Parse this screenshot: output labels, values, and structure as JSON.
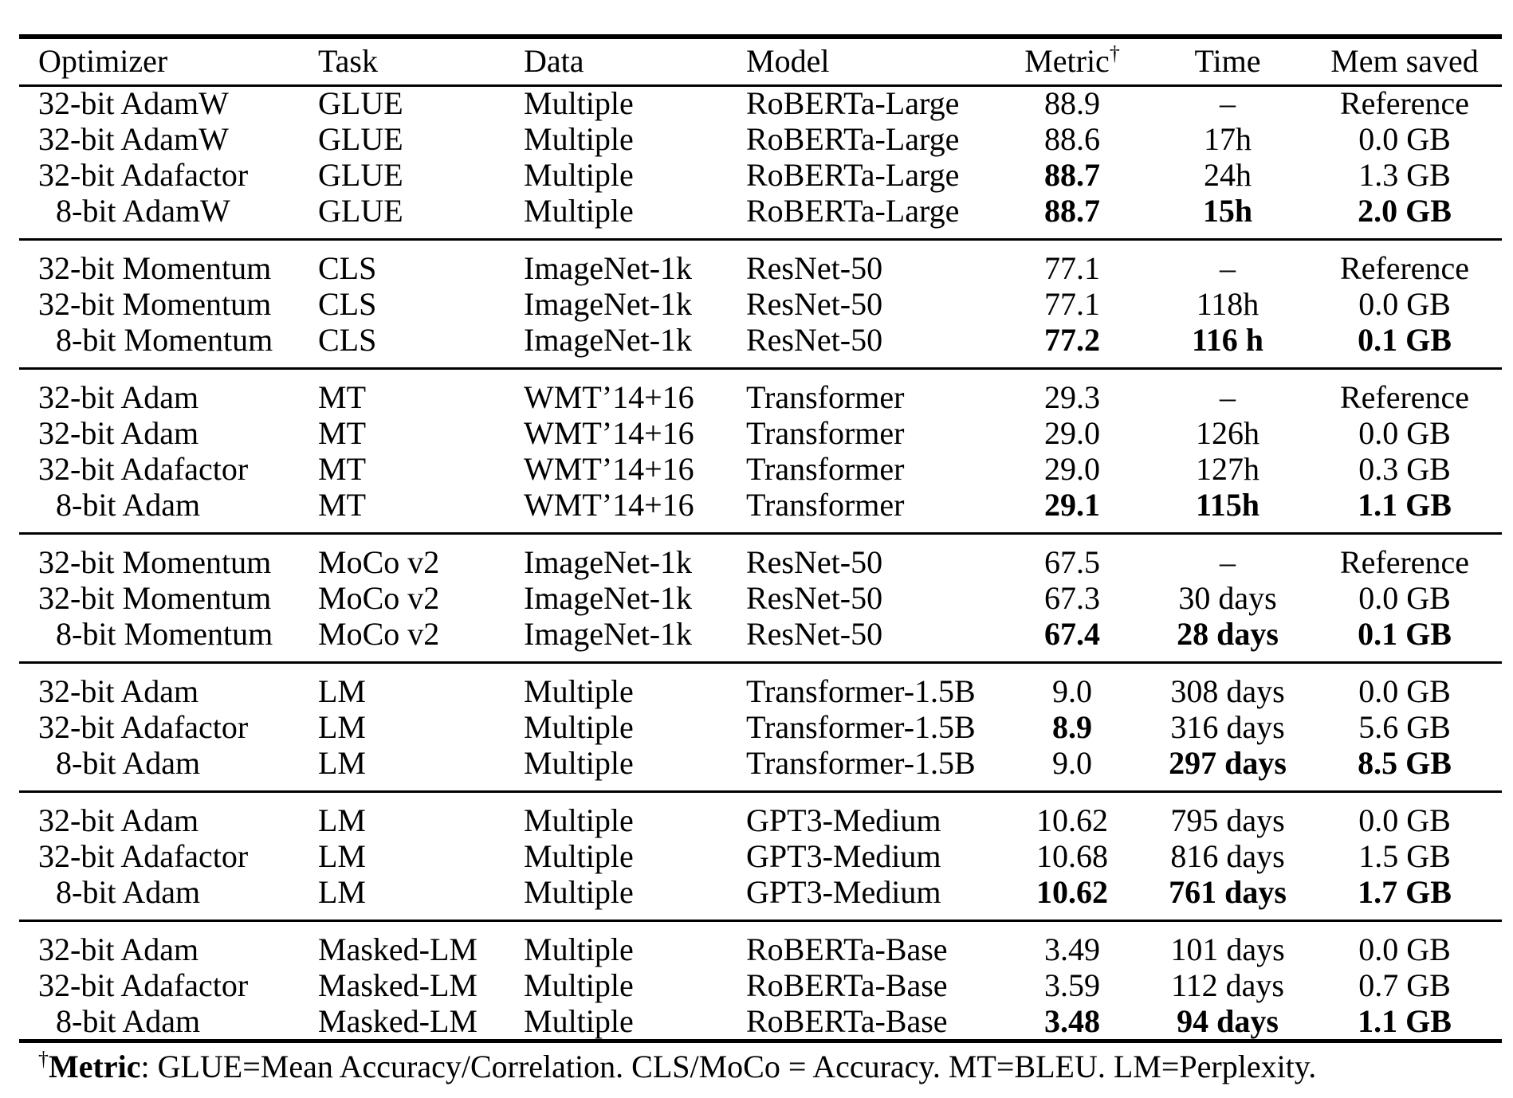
{
  "colors": {
    "text": "#000000",
    "background": "#ffffff",
    "rule": "#000000"
  },
  "table": {
    "headers": [
      "Optimizer",
      "Task",
      "Data",
      "Model",
      "Metric",
      "Time",
      "Mem saved"
    ],
    "metric_dagger": "†",
    "groups": [
      {
        "rows": [
          {
            "optimizer": "32-bit AdamW",
            "task": "GLUE",
            "data": "Multiple",
            "model": "RoBERTa-Large",
            "metric": "88.9",
            "time": "–",
            "mem": "Reference",
            "bold": []
          },
          {
            "optimizer": "32-bit AdamW",
            "task": "GLUE",
            "data": "Multiple",
            "model": "RoBERTa-Large",
            "metric": "88.6",
            "time": "17h",
            "mem": "0.0 GB",
            "bold": []
          },
          {
            "optimizer": "32-bit Adafactor",
            "task": "GLUE",
            "data": "Multiple",
            "model": "RoBERTa-Large",
            "metric": "88.7",
            "time": "24h",
            "mem": "1.3 GB",
            "bold": [
              "metric"
            ]
          },
          {
            "optimizer": "8-bit AdamW",
            "task": "GLUE",
            "data": "Multiple",
            "model": "RoBERTa-Large",
            "metric": "88.7",
            "time": "15h",
            "mem": "2.0 GB",
            "bold": [
              "metric",
              "time",
              "mem"
            ]
          }
        ]
      },
      {
        "rows": [
          {
            "optimizer": "32-bit Momentum",
            "task": "CLS",
            "data": "ImageNet-1k",
            "model": "ResNet-50",
            "metric": "77.1",
            "time": "–",
            "mem": "Reference",
            "bold": []
          },
          {
            "optimizer": "32-bit Momentum",
            "task": "CLS",
            "data": "ImageNet-1k",
            "model": "ResNet-50",
            "metric": "77.1",
            "time": "118h",
            "mem": "0.0 GB",
            "bold": []
          },
          {
            "optimizer": "8-bit Momentum",
            "task": "CLS",
            "data": "ImageNet-1k",
            "model": "ResNet-50",
            "metric": "77.2",
            "time": "116 h",
            "mem": "0.1 GB",
            "bold": [
              "metric",
              "time",
              "mem"
            ]
          }
        ]
      },
      {
        "rows": [
          {
            "optimizer": "32-bit Adam",
            "task": "MT",
            "data": "WMT’14+16",
            "model": "Transformer",
            "metric": "29.3",
            "time": "–",
            "mem": "Reference",
            "bold": []
          },
          {
            "optimizer": "32-bit Adam",
            "task": "MT",
            "data": "WMT’14+16",
            "model": "Transformer",
            "metric": "29.0",
            "time": "126h",
            "mem": "0.0 GB",
            "bold": []
          },
          {
            "optimizer": "32-bit Adafactor",
            "task": "MT",
            "data": "WMT’14+16",
            "model": "Transformer",
            "metric": "29.0",
            "time": "127h",
            "mem": "0.3 GB",
            "bold": []
          },
          {
            "optimizer": "8-bit Adam",
            "task": "MT",
            "data": "WMT’14+16",
            "model": "Transformer",
            "metric": "29.1",
            "time": "115h",
            "mem": "1.1 GB",
            "bold": [
              "metric",
              "time",
              "mem"
            ]
          }
        ]
      },
      {
        "rows": [
          {
            "optimizer": "32-bit Momentum",
            "task": "MoCo v2",
            "data": "ImageNet-1k",
            "model": "ResNet-50",
            "metric": "67.5",
            "time": "–",
            "mem": "Reference",
            "bold": []
          },
          {
            "optimizer": "32-bit Momentum",
            "task": "MoCo v2",
            "data": "ImageNet-1k",
            "model": "ResNet-50",
            "metric": "67.3",
            "time": "30 days",
            "mem": "0.0 GB",
            "bold": []
          },
          {
            "optimizer": "8-bit Momentum",
            "task": "MoCo v2",
            "data": "ImageNet-1k",
            "model": "ResNet-50",
            "metric": "67.4",
            "time": "28 days",
            "mem": "0.1 GB",
            "bold": [
              "metric",
              "time",
              "mem"
            ]
          }
        ]
      },
      {
        "rows": [
          {
            "optimizer": "32-bit Adam",
            "task": "LM",
            "data": "Multiple",
            "model": "Transformer-1.5B",
            "metric": "9.0",
            "time": "308 days",
            "mem": "0.0 GB",
            "bold": []
          },
          {
            "optimizer": "32-bit Adafactor",
            "task": "LM",
            "data": "Multiple",
            "model": "Transformer-1.5B",
            "metric": "8.9",
            "time": "316 days",
            "mem": "5.6 GB",
            "bold": [
              "metric"
            ]
          },
          {
            "optimizer": "8-bit Adam",
            "task": "LM",
            "data": "Multiple",
            "model": "Transformer-1.5B",
            "metric": "9.0",
            "time": "297 days",
            "mem": "8.5 GB",
            "bold": [
              "time",
              "mem"
            ]
          }
        ]
      },
      {
        "rows": [
          {
            "optimizer": "32-bit Adam",
            "task": "LM",
            "data": "Multiple",
            "model": "GPT3-Medium",
            "metric": "10.62",
            "time": "795 days",
            "mem": "0.0 GB",
            "bold": []
          },
          {
            "optimizer": "32-bit Adafactor",
            "task": "LM",
            "data": "Multiple",
            "model": "GPT3-Medium",
            "metric": "10.68",
            "time": "816 days",
            "mem": "1.5 GB",
            "bold": []
          },
          {
            "optimizer": "8-bit Adam",
            "task": "LM",
            "data": "Multiple",
            "model": "GPT3-Medium",
            "metric": "10.62",
            "time": "761 days",
            "mem": "1.7 GB",
            "bold": [
              "metric",
              "time",
              "mem"
            ]
          }
        ]
      },
      {
        "rows": [
          {
            "optimizer": "32-bit Adam",
            "task": "Masked-LM",
            "data": "Multiple",
            "model": "RoBERTa-Base",
            "metric": "3.49",
            "time": "101 days",
            "mem": "0.0 GB",
            "bold": []
          },
          {
            "optimizer": "32-bit Adafactor",
            "task": "Masked-LM",
            "data": "Multiple",
            "model": "RoBERTa-Base",
            "metric": "3.59",
            "time": "112 days",
            "mem": "0.7 GB",
            "bold": []
          },
          {
            "optimizer": "8-bit Adam",
            "task": "Masked-LM",
            "data": "Multiple",
            "model": "RoBERTa-Base",
            "metric": "3.48",
            "time": "94 days",
            "mem": "1.1 GB",
            "bold": [
              "metric",
              "time",
              "mem"
            ]
          }
        ]
      }
    ],
    "footnote": {
      "dagger": "†",
      "label": "Metric",
      "rest": ": GLUE=Mean Accuracy/Correlation. CLS/MoCo = Accuracy. MT=BLEU. LM=Perplexity."
    }
  }
}
